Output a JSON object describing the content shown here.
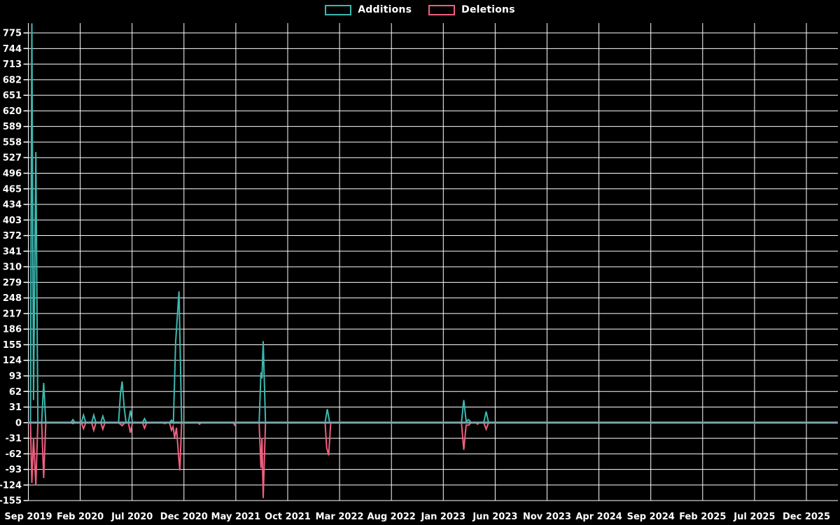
{
  "legend": {
    "items": [
      {
        "label": "Additions",
        "color": "#3cb8b0"
      },
      {
        "label": "Deletions",
        "color": "#ef5f80"
      }
    ]
  },
  "chart_data": {
    "type": "line",
    "background": "#000000",
    "grid_color": "#ffffff",
    "zero_line_color": "#7ba4ab",
    "text_color": "#ffffff",
    "x_axis": {
      "tick_labels": [
        "Sep 2019",
        "Feb 2020",
        "Jul 2020",
        "Dec 2020",
        "May 2021",
        "Oct 2021",
        "Mar 2022",
        "Aug 2022",
        "Jan 2023",
        "Jun 2023",
        "Nov 2023",
        "Apr 2024",
        "Sep 2024",
        "Feb 2025",
        "Jul 2025",
        "Dec 2025"
      ],
      "months_between_ticks": 5
    },
    "y_axis": {
      "min": -155,
      "max": 775,
      "step": 31,
      "tick_labels": [
        775,
        744,
        713,
        682,
        651,
        620,
        589,
        558,
        527,
        496,
        465,
        434,
        403,
        372,
        341,
        310,
        279,
        248,
        217,
        186,
        155,
        124,
        93,
        62,
        31,
        0,
        -31,
        -62,
        -93,
        -124,
        -155
      ]
    },
    "series": [
      {
        "name": "Additions",
        "color": "#3cb8b0",
        "points_month_value": [
          [
            -0.03,
            0
          ],
          [
            0.2,
            0
          ],
          [
            0.34,
            794
          ],
          [
            0.5,
            45
          ],
          [
            0.72,
            538
          ],
          [
            0.92,
            0
          ],
          [
            1.28,
            0
          ],
          [
            1.48,
            79
          ],
          [
            1.68,
            0
          ],
          [
            4.1,
            0
          ],
          [
            4.3,
            6
          ],
          [
            4.5,
            0
          ],
          [
            5.1,
            0
          ],
          [
            5.32,
            15
          ],
          [
            5.54,
            0
          ],
          [
            6.1,
            0
          ],
          [
            6.3,
            15
          ],
          [
            6.52,
            0
          ],
          [
            6.98,
            0
          ],
          [
            7.18,
            13
          ],
          [
            7.38,
            0
          ],
          [
            8.7,
            0
          ],
          [
            8.88,
            58
          ],
          [
            9.04,
            82
          ],
          [
            9.24,
            30
          ],
          [
            9.42,
            0
          ],
          [
            9.64,
            0
          ],
          [
            9.84,
            24
          ],
          [
            10.04,
            0
          ],
          [
            11.0,
            0
          ],
          [
            11.2,
            8
          ],
          [
            11.4,
            0
          ],
          [
            13.6,
            0
          ],
          [
            13.8,
            5
          ],
          [
            13.98,
            0
          ],
          [
            14.2,
            160
          ],
          [
            14.52,
            261
          ],
          [
            14.78,
            0
          ],
          [
            22.25,
            0
          ],
          [
            22.42,
            100
          ],
          [
            22.52,
            88
          ],
          [
            22.64,
            162
          ],
          [
            22.86,
            0
          ],
          [
            28.6,
            0
          ],
          [
            28.82,
            27
          ],
          [
            29.05,
            0
          ],
          [
            41.75,
            0
          ],
          [
            41.97,
            45
          ],
          [
            42.2,
            3
          ],
          [
            42.45,
            6
          ],
          [
            42.68,
            0
          ],
          [
            43.9,
            0
          ],
          [
            44.13,
            22
          ],
          [
            44.36,
            0
          ],
          [
            78.0,
            0
          ]
        ]
      },
      {
        "name": "Deletions",
        "color": "#ef5f80",
        "points_month_value": [
          [
            -0.03,
            0
          ],
          [
            0.2,
            0
          ],
          [
            0.34,
            -120
          ],
          [
            0.5,
            -30
          ],
          [
            0.72,
            -124
          ],
          [
            0.92,
            0
          ],
          [
            1.28,
            0
          ],
          [
            1.48,
            -110
          ],
          [
            1.68,
            0
          ],
          [
            4.1,
            0
          ],
          [
            4.3,
            -2
          ],
          [
            4.5,
            0
          ],
          [
            5.1,
            0
          ],
          [
            5.32,
            -12
          ],
          [
            5.54,
            0
          ],
          [
            6.1,
            0
          ],
          [
            6.3,
            -15
          ],
          [
            6.52,
            0
          ],
          [
            6.98,
            0
          ],
          [
            7.18,
            -13
          ],
          [
            7.38,
            0
          ],
          [
            8.7,
            0
          ],
          [
            9.04,
            -6
          ],
          [
            9.3,
            0
          ],
          [
            9.64,
            0
          ],
          [
            9.84,
            -20
          ],
          [
            10.04,
            0
          ],
          [
            11.0,
            0
          ],
          [
            11.2,
            -11
          ],
          [
            11.4,
            0
          ],
          [
            13.0,
            0
          ],
          [
            13.15,
            -2
          ],
          [
            13.3,
            0
          ],
          [
            13.6,
            0
          ],
          [
            13.8,
            -15
          ],
          [
            13.95,
            -8
          ],
          [
            14.1,
            -30
          ],
          [
            14.28,
            -10
          ],
          [
            14.45,
            -57
          ],
          [
            14.6,
            -95
          ],
          [
            14.78,
            0
          ],
          [
            16.35,
            0
          ],
          [
            16.5,
            -3
          ],
          [
            16.65,
            0
          ],
          [
            19.75,
            0
          ],
          [
            19.9,
            -5
          ],
          [
            20.05,
            0
          ],
          [
            22.25,
            0
          ],
          [
            22.42,
            -90
          ],
          [
            22.52,
            -30
          ],
          [
            22.64,
            -150
          ],
          [
            22.86,
            0
          ],
          [
            28.6,
            0
          ],
          [
            28.76,
            -50
          ],
          [
            28.95,
            -65
          ],
          [
            29.15,
            0
          ],
          [
            41.75,
            0
          ],
          [
            41.97,
            -54
          ],
          [
            42.2,
            -5
          ],
          [
            42.45,
            -5
          ],
          [
            42.68,
            0
          ],
          [
            43.15,
            0
          ],
          [
            43.3,
            -3
          ],
          [
            43.45,
            0
          ],
          [
            43.9,
            0
          ],
          [
            44.13,
            -13
          ],
          [
            44.36,
            0
          ],
          [
            78.0,
            0
          ]
        ]
      }
    ]
  }
}
